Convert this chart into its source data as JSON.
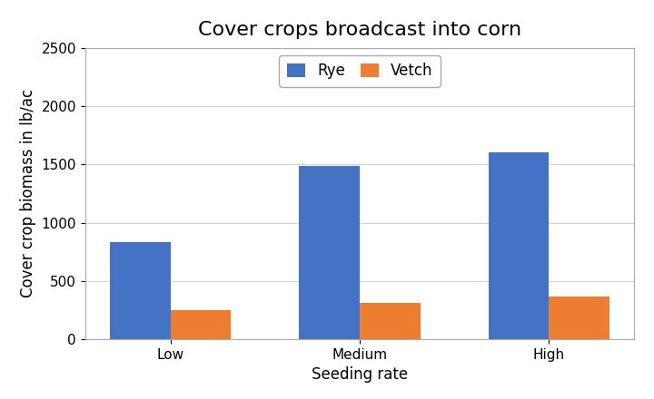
{
  "title": "Cover crops broadcast into corn",
  "xlabel": "Seeding rate",
  "ylabel": "Cover crop biomass in lb/ac",
  "categories": [
    "Low",
    "Medium",
    "High"
  ],
  "series": [
    {
      "label": "Rye",
      "values": [
        830,
        1490,
        1600
      ],
      "color": "#4472C4"
    },
    {
      "label": "Vetch",
      "values": [
        250,
        310,
        365
      ],
      "color": "#ED7D31"
    }
  ],
  "ylim": [
    0,
    2500
  ],
  "yticks": [
    0,
    500,
    1000,
    1500,
    2000,
    2500
  ],
  "bar_width": 0.32,
  "title_fontsize": 16,
  "label_fontsize": 12,
  "tick_fontsize": 11,
  "legend_fontsize": 12,
  "background_color": "#ffffff",
  "plot_background_color": "#ffffff",
  "grid_color": "#d0d0d0"
}
